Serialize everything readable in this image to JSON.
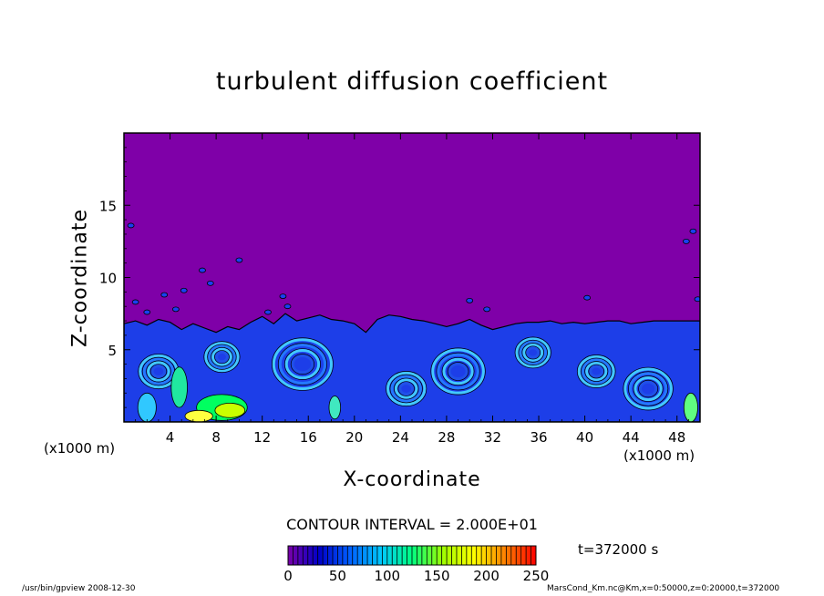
{
  "chart_data": {
    "type": "heatmap",
    "title": "turbulent diffusion coefficient",
    "xlabel": "X-coordinate",
    "ylabel": "Z-coordinate",
    "x_unit": "(x1000 m)",
    "y_unit": "(x1000 m)",
    "xlim": [
      0,
      50
    ],
    "ylim": [
      0,
      20
    ],
    "x_ticks": [
      4,
      8,
      12,
      16,
      20,
      24,
      28,
      32,
      36,
      40,
      44,
      48
    ],
    "y_ticks": [
      5,
      10,
      15
    ],
    "contour_interval": "CONTOUR INTERVAL = 2.000E+01",
    "colorbar": {
      "min": 0,
      "max": 250,
      "ticks": [
        0,
        50,
        100,
        150,
        200,
        250
      ],
      "colormap": [
        "#7a00a8",
        "#0000c8",
        "#0060ff",
        "#00c8ff",
        "#00ff80",
        "#a0ff00",
        "#ffff00",
        "#ff8000",
        "#ff0000"
      ]
    },
    "time_label": "t=372000 s",
    "colors": {
      "upper_region": "#7f00a8",
      "mixed_layer": "#1d3ee8"
    }
  },
  "footer": {
    "left": "/usr/bin/gpview   2008-12-30",
    "right": "MarsCond_Km.nc@Km,x=0:50000,z=0:20000,t=372000"
  }
}
